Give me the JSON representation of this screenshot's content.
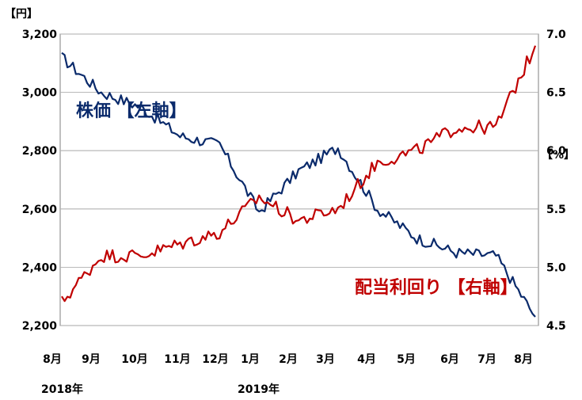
{
  "chart_data": {
    "type": "line",
    "title": "",
    "left_unit": "【円】",
    "right_unit": "【%】",
    "left_ticks": [
      "3,200",
      "3,000",
      "2,800",
      "2,600",
      "2,400",
      "2,200"
    ],
    "right_ticks": [
      "7.0",
      "6.5",
      "6.0",
      "5.5",
      "5.0",
      "4.5"
    ],
    "x_month_labels": [
      "8月",
      "9月",
      "10月",
      "11月",
      "12月",
      "1月",
      "2月",
      "3月",
      "4月",
      "5月",
      "6月",
      "7月",
      "8月"
    ],
    "x_year_labels": [
      "2018年",
      "2019年"
    ],
    "x": [
      "2018-08",
      "2018-09",
      "2018-10",
      "2018-11",
      "2018-12",
      "2019-01",
      "2019-02",
      "2019-03",
      "2019-04",
      "2019-05",
      "2019-06",
      "2019-07",
      "2019-08"
    ],
    "left_axis_range": [
      2200,
      3200
    ],
    "right_axis_range": [
      4.5,
      7.0
    ],
    "grid": true,
    "series": [
      {
        "name": "株価 【左軸】",
        "axis": "left",
        "color": "#0a2a6b",
        "values": [
          3120,
          3000,
          2950,
          2850,
          2820,
          2590,
          2730,
          2810,
          2600,
          2500,
          2450,
          2440,
          2230
        ]
      },
      {
        "name": "配当利回り 【右軸】",
        "axis": "right",
        "color": "#c00000",
        "values": [
          4.7,
          5.1,
          5.1,
          5.2,
          5.3,
          5.6,
          5.4,
          5.5,
          5.9,
          6.0,
          6.2,
          6.2,
          6.9
        ]
      }
    ]
  }
}
